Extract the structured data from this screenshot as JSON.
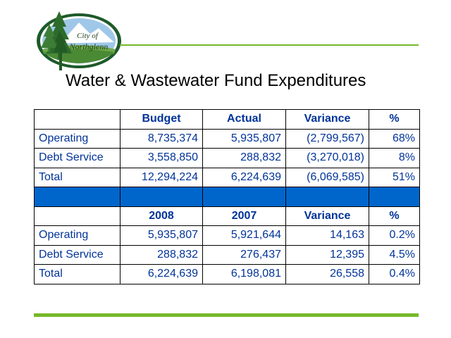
{
  "logo": {
    "text_line1": "City of",
    "text_line2": "Northglenn",
    "icon": "city-of-northglenn-logo"
  },
  "title": "Water & Wastewater Fund Expenditures",
  "colors": {
    "text": "#003399",
    "band": "#0066cc",
    "accent_line": "#76b82a"
  },
  "table": {
    "budget_section": {
      "headers": [
        "",
        "Budget",
        "Actual",
        "Variance",
        "%"
      ],
      "rows": [
        {
          "label": "Operating",
          "budget": "8,735,374",
          "actual": "5,935,807",
          "variance": "(2,799,567)",
          "pct": "68%"
        },
        {
          "label": "Debt Service",
          "budget": "3,558,850",
          "actual": "288,832",
          "variance": "(3,270,018)",
          "pct": "8%"
        },
        {
          "label": "Total",
          "budget": "12,294,224",
          "actual": "6,224,639",
          "variance": "(6,069,585)",
          "pct": "51%"
        }
      ]
    },
    "year_section": {
      "headers": [
        "",
        "2008",
        "2007",
        "Variance",
        "%"
      ],
      "rows": [
        {
          "label": "Operating",
          "y2008": "5,935,807",
          "y2007": "5,921,644",
          "variance": "14,163",
          "pct": "0.2%"
        },
        {
          "label": "Debt Service",
          "y2008": "288,832",
          "y2007": "276,437",
          "variance": "12,395",
          "pct": "4.5%"
        },
        {
          "label": "Total",
          "y2008": "6,224,639",
          "y2007": "6,198,081",
          "variance": "26,558",
          "pct": "0.4%"
        }
      ]
    }
  }
}
